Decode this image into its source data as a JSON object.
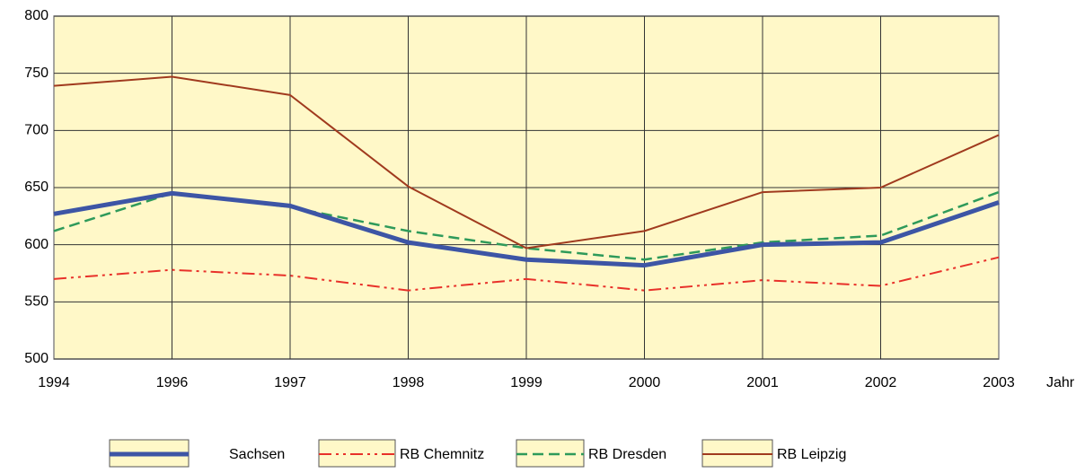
{
  "chart_data": {
    "type": "line",
    "x_label": "Jahr",
    "categories": [
      "1994",
      "1996",
      "1997",
      "1998",
      "1999",
      "2000",
      "2001",
      "2002",
      "2003"
    ],
    "series": [
      {
        "name": "Sachsen",
        "color": "#3d55a5",
        "style": "thick",
        "values": [
          627,
          645,
          634,
          602,
          587,
          582,
          600,
          602,
          637
        ]
      },
      {
        "name": "RB Chemnitz",
        "color": "#e8312a",
        "style": "dash-dot-dot",
        "values": [
          570,
          578,
          573,
          560,
          570,
          560,
          569,
          564,
          589
        ]
      },
      {
        "name": "RB Dresden",
        "color": "#2e9a5a",
        "style": "dashed",
        "values": [
          612,
          645,
          633,
          612,
          597,
          587,
          602,
          608,
          646
        ]
      },
      {
        "name": "RB Leipzig",
        "color": "#a03a1e",
        "style": "solid",
        "values": [
          739,
          747,
          731,
          651,
          597,
          612,
          646,
          650,
          696
        ]
      }
    ],
    "ylim": [
      500,
      800
    ],
    "yticks": [
      500,
      550,
      600,
      650,
      700,
      750,
      800
    ],
    "grid": true,
    "legend": "bottom"
  }
}
